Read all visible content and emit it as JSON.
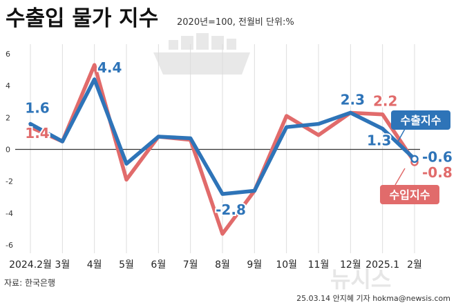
{
  "header": {
    "title": "수출입 물가 지수",
    "subtitle": "2020년=100, 전월비 단위:%"
  },
  "footer": {
    "source": "자료: 한국은행",
    "credit": "25.03.14 안지혜 기자 hokma@newsis.com",
    "watermark": "뉴시스"
  },
  "colors": {
    "background": "#ffffff",
    "export": "#2e74b8",
    "import": "#e16b6b",
    "grid": "#dddddd",
    "zero_line": "#333333",
    "text": "#222222"
  },
  "chart_data": {
    "type": "line",
    "title": "수출입 물가 지수",
    "ylim": [
      -6,
      6
    ],
    "yticks": [
      6,
      4,
      2,
      0,
      -2,
      -4,
      -6
    ],
    "categories": [
      "2024.2월",
      "3월",
      "4월",
      "5월",
      "6월",
      "7월",
      "8월",
      "9월",
      "10월",
      "11월",
      "12월",
      "2025.1",
      "2월"
    ],
    "series": [
      {
        "name": "수출지수",
        "color": "#2e74b8",
        "values": [
          1.6,
          0.5,
          4.4,
          -0.9,
          0.8,
          0.7,
          -2.8,
          -2.6,
          1.4,
          1.6,
          2.3,
          1.3,
          -0.6
        ],
        "labels": [
          {
            "index": 0,
            "text": "1.6"
          },
          {
            "index": 2,
            "text": "4.4"
          },
          {
            "index": 6,
            "text": "-2.8"
          },
          {
            "index": 10,
            "text": "2.3"
          },
          {
            "index": 11,
            "text": "1.3"
          },
          {
            "index": 12,
            "text": "-0.6"
          }
        ]
      },
      {
        "name": "수입지수",
        "color": "#e16b6b",
        "values": [
          1.4,
          0.5,
          5.3,
          -1.9,
          0.8,
          0.6,
          -5.3,
          -2.6,
          2.1,
          0.9,
          2.3,
          2.2,
          -0.8
        ],
        "labels": [
          {
            "index": 0,
            "text": "1.4"
          },
          {
            "index": 11,
            "text": "2.2"
          },
          {
            "index": 12,
            "text": "-0.8"
          }
        ]
      }
    ]
  }
}
